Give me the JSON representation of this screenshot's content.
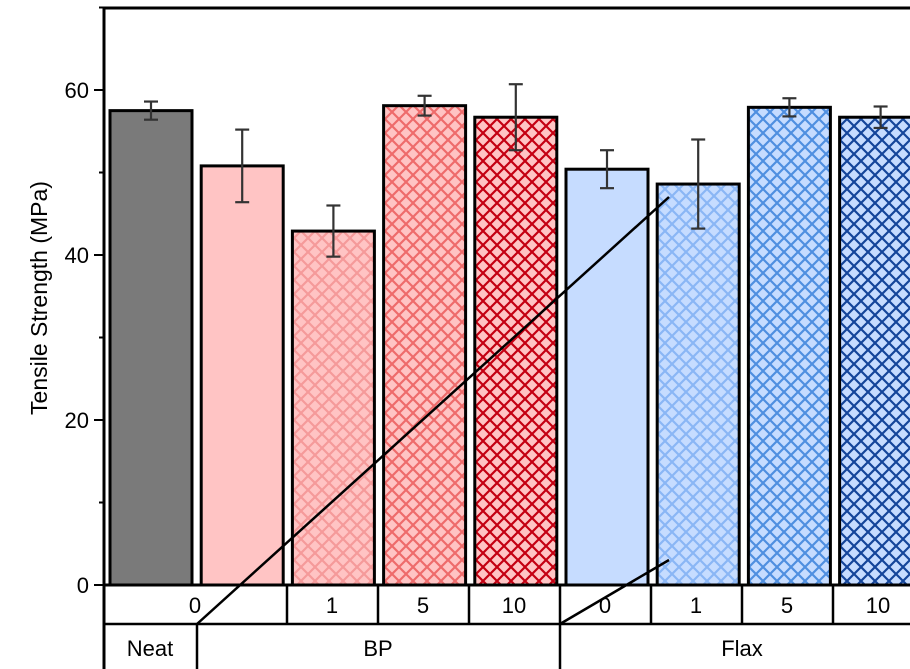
{
  "chart_data": {
    "type": "bar",
    "ylabel": "Tensile Strength (MPa)",
    "ylim": [
      0,
      70
    ],
    "yticks": [
      0,
      20,
      40,
      60
    ],
    "grid": false,
    "bars": [
      {
        "loading": "0",
        "material": "Neat",
        "value": 57.5,
        "error": 1.1,
        "fill": "#7a7a7a",
        "hatch": "none"
      },
      {
        "loading": "0",
        "material": "BP",
        "value": 50.8,
        "error": 4.4,
        "fill": "#ffc4c4",
        "hatch": "none"
      },
      {
        "loading": "1",
        "material": "BP",
        "value": 42.9,
        "error": 3.1,
        "fill": "#ffc4c4",
        "hatch": "#f59a9a"
      },
      {
        "loading": "5",
        "material": "BP",
        "value": 58.1,
        "error": 1.2,
        "fill": "#ffc4c4",
        "hatch": "#ee6b6b"
      },
      {
        "loading": "10",
        "material": "BP",
        "value": 56.7,
        "error": 4.0,
        "fill": "#ffc4c4",
        "hatch": "#c40012"
      },
      {
        "loading": "0",
        "material": "Flax",
        "value": 50.4,
        "error": 2.3,
        "fill": "#c6dcff",
        "hatch": "none"
      },
      {
        "loading": "1",
        "material": "Flax",
        "value": 48.6,
        "error": 5.4,
        "fill": "#c6dcff",
        "hatch": "#8ab6f5"
      },
      {
        "loading": "5",
        "material": "Flax",
        "value": 57.9,
        "error": 1.1,
        "fill": "#c6dcff",
        "hatch": "#4f8fe0"
      },
      {
        "loading": "10",
        "material": "Flax",
        "value": 56.7,
        "error": 1.3,
        "fill": "#c6dcff",
        "hatch": "#14459a"
      }
    ],
    "loading_row": [
      "0",
      "1",
      "5",
      "10",
      "0",
      "1",
      "5",
      "10"
    ],
    "material_row": [
      "Neat",
      "BP",
      "Flax"
    ]
  }
}
